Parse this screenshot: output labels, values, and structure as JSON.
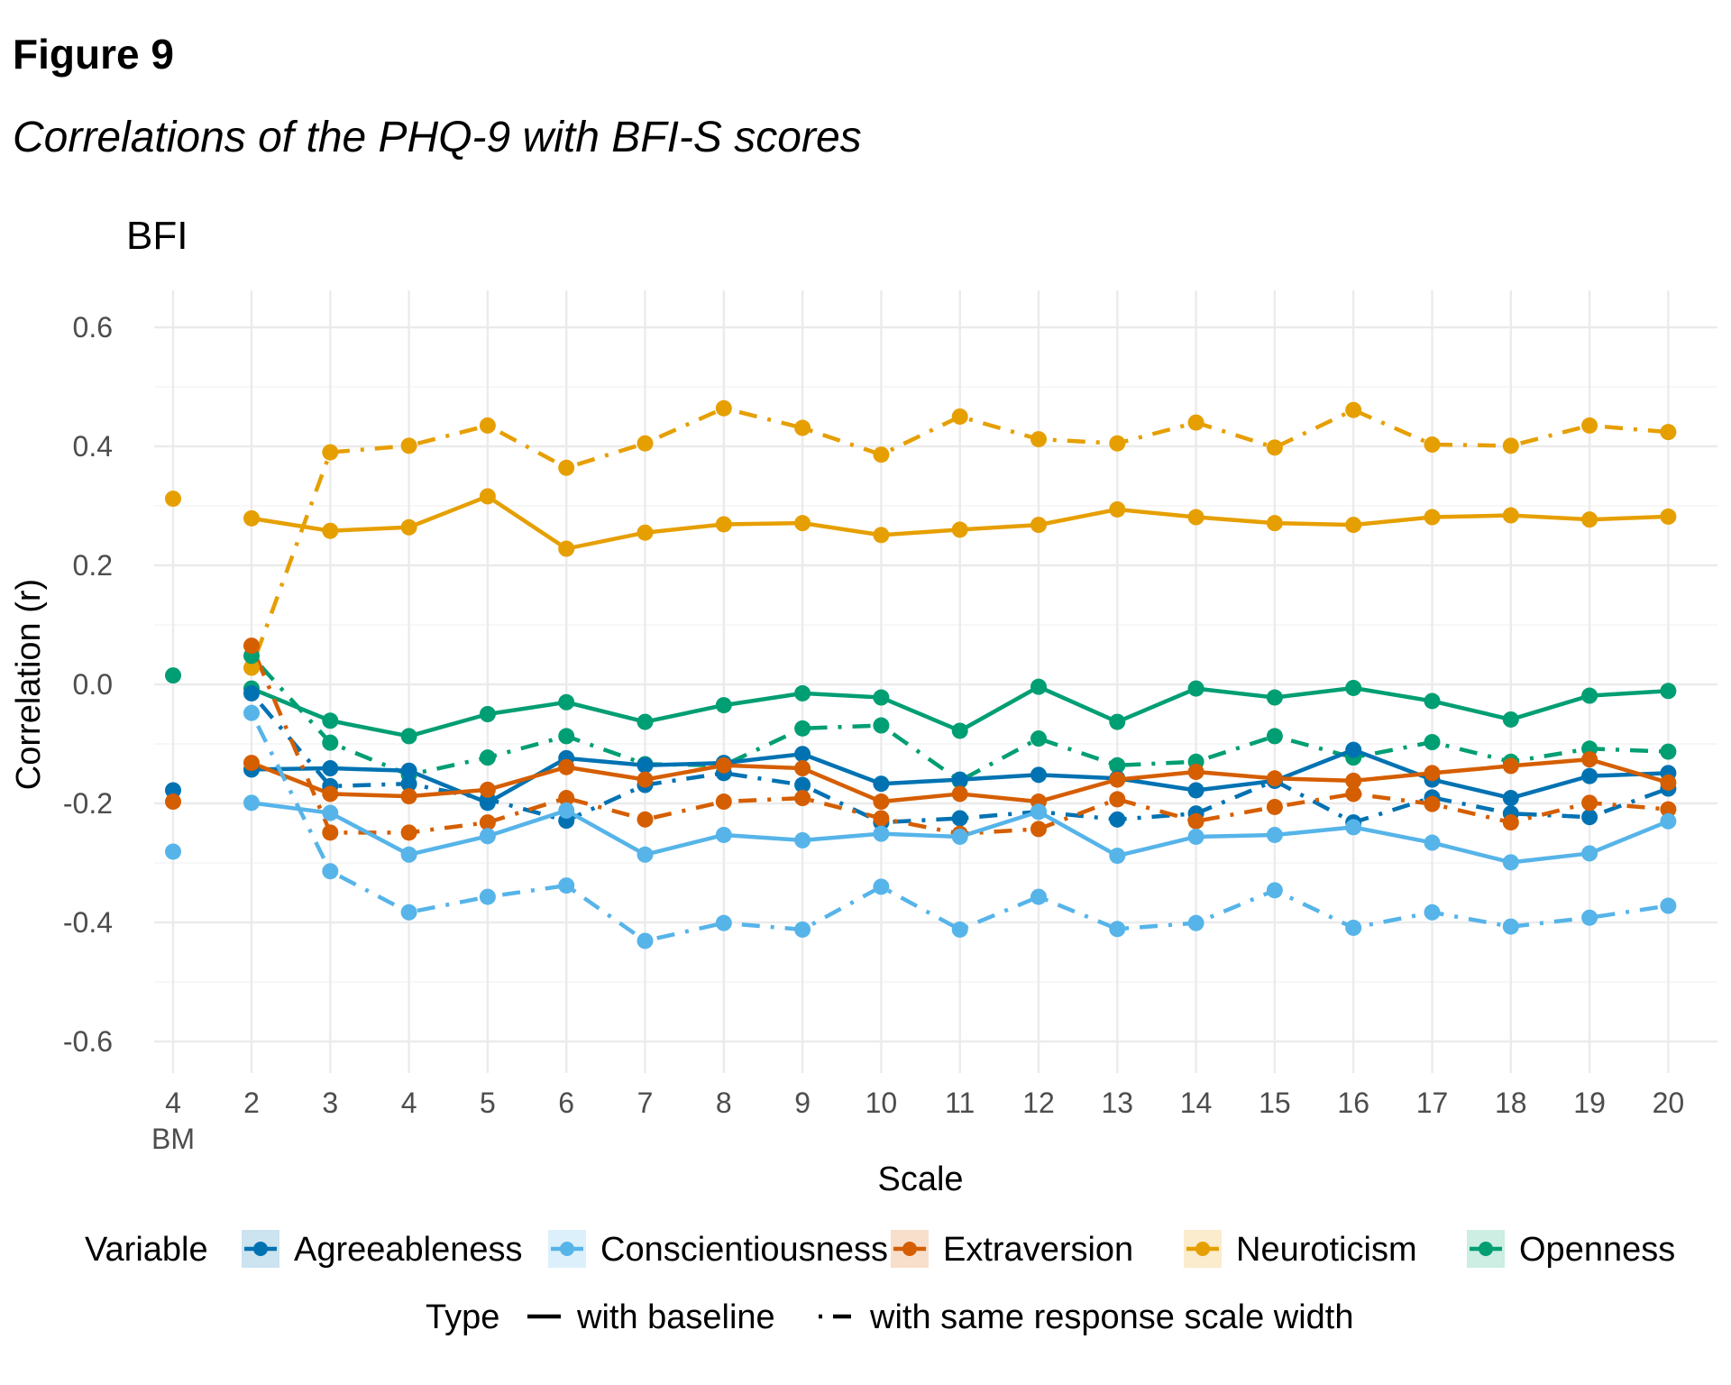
{
  "figure": {
    "label": "Figure 9",
    "subtitle": "Correlations of the PHQ-9 with BFI-S scores"
  },
  "chart_data": {
    "type": "line",
    "title": "BFI",
    "xlabel": "Scale",
    "ylabel": "Correlation (r)",
    "ylim": [
      -0.65,
      0.65
    ],
    "yticks": [
      "-0.6",
      "-0.4",
      "-0.2",
      "0.0",
      "0.2",
      "0.4",
      "0.6"
    ],
    "ytick_values": [
      -0.6,
      -0.4,
      -0.2,
      0.0,
      0.2,
      0.4,
      0.6
    ],
    "grid": true,
    "categories": [
      "4\nBM",
      "2",
      "3",
      "4",
      "5",
      "6",
      "7",
      "8",
      "9",
      "10",
      "11",
      "12",
      "13",
      "14",
      "15",
      "16",
      "17",
      "18",
      "19",
      "20"
    ],
    "xtick_labels": [
      {
        "main": "4",
        "sub": "BM"
      },
      {
        "main": "2"
      },
      {
        "main": "3"
      },
      {
        "main": "4"
      },
      {
        "main": "5"
      },
      {
        "main": "6"
      },
      {
        "main": "7"
      },
      {
        "main": "8"
      },
      {
        "main": "9"
      },
      {
        "main": "10"
      },
      {
        "main": "11"
      },
      {
        "main": "12"
      },
      {
        "main": "13"
      },
      {
        "main": "14"
      },
      {
        "main": "15"
      },
      {
        "main": "16"
      },
      {
        "main": "17"
      },
      {
        "main": "18"
      },
      {
        "main": "19"
      },
      {
        "main": "20"
      }
    ],
    "legend": {
      "placement": "bottom",
      "variable_title": "Variable",
      "variables": [
        {
          "name": "Agreeableness",
          "color": "#0072B2",
          "fill": "#cce3f0"
        },
        {
          "name": "Conscientiousness",
          "color": "#56B4E9",
          "fill": "#dcf0fb"
        },
        {
          "name": "Extraversion",
          "color": "#D55E00",
          "fill": "#f7dfcc"
        },
        {
          "name": "Neuroticism",
          "color": "#E69F00",
          "fill": "#faeccc"
        },
        {
          "name": "Openness",
          "color": "#009E73",
          "fill": "#cceee3"
        }
      ],
      "type_title": "Type",
      "types": [
        {
          "name": "with baseline",
          "linestyle": "solid"
        },
        {
          "name": "with same response scale width",
          "linestyle": "dotdash"
        }
      ]
    },
    "series": [
      {
        "variable": "Neuroticism",
        "type": "with baseline",
        "color": "#E69F00",
        "values": [
          0.312,
          0.279,
          0.258,
          0.264,
          0.316,
          0.228,
          0.255,
          0.269,
          0.271,
          0.251,
          0.26,
          0.268,
          0.294,
          0.281,
          0.271,
          0.268,
          0.281,
          0.284,
          0.277,
          0.282
        ]
      },
      {
        "variable": "Neuroticism",
        "type": "with same response scale width",
        "color": "#E69F00",
        "values": [
          null,
          0.028,
          0.39,
          0.401,
          0.435,
          0.364,
          0.405,
          0.464,
          0.431,
          0.386,
          0.45,
          0.412,
          0.405,
          0.44,
          0.398,
          0.461,
          0.403,
          0.401,
          0.435,
          0.424
        ]
      },
      {
        "variable": "Openness",
        "type": "with baseline",
        "color": "#009E73",
        "values": [
          0.015,
          -0.007,
          -0.061,
          -0.087,
          -0.05,
          -0.03,
          -0.063,
          -0.035,
          -0.015,
          -0.022,
          -0.078,
          -0.004,
          -0.063,
          -0.007,
          -0.022,
          -0.006,
          -0.028,
          -0.059,
          -0.019,
          -0.011
        ]
      },
      {
        "variable": "Openness",
        "type": "with same response scale width",
        "color": "#009E73",
        "values": [
          null,
          0.048,
          -0.098,
          -0.152,
          -0.123,
          -0.087,
          -0.134,
          -0.136,
          -0.074,
          -0.069,
          -0.162,
          -0.091,
          -0.136,
          -0.13,
          -0.087,
          -0.123,
          -0.097,
          -0.13,
          -0.108,
          -0.113
        ]
      },
      {
        "variable": "Agreeableness",
        "type": "with baseline",
        "color": "#0072B2",
        "values": [
          -0.178,
          -0.143,
          -0.141,
          -0.145,
          -0.199,
          -0.124,
          -0.136,
          -0.132,
          -0.117,
          -0.167,
          -0.16,
          -0.152,
          -0.158,
          -0.178,
          -0.162,
          -0.11,
          -0.16,
          -0.191,
          -0.154,
          -0.149
        ]
      },
      {
        "variable": "Agreeableness",
        "type": "with same response scale width",
        "color": "#0072B2",
        "values": [
          null,
          -0.015,
          -0.171,
          -0.167,
          -0.193,
          -0.229,
          -0.169,
          -0.149,
          -0.169,
          -0.232,
          -0.225,
          -0.214,
          -0.227,
          -0.217,
          -0.162,
          -0.232,
          -0.19,
          -0.217,
          -0.223,
          -0.175
        ]
      },
      {
        "variable": "Extraversion",
        "type": "with baseline",
        "color": "#D55E00",
        "values": [
          -0.197,
          -0.132,
          -0.184,
          -0.188,
          -0.177,
          -0.139,
          -0.16,
          -0.136,
          -0.141,
          -0.197,
          -0.184,
          -0.197,
          -0.16,
          -0.147,
          -0.158,
          -0.162,
          -0.149,
          -0.137,
          -0.126,
          -0.165
        ]
      },
      {
        "variable": "Extraversion",
        "type": "with same response scale width",
        "color": "#D55E00",
        "values": [
          null,
          0.065,
          -0.249,
          -0.249,
          -0.232,
          -0.191,
          -0.227,
          -0.197,
          -0.191,
          -0.225,
          -0.251,
          -0.243,
          -0.193,
          -0.23,
          -0.206,
          -0.184,
          -0.201,
          -0.232,
          -0.199,
          -0.21
        ]
      },
      {
        "variable": "Conscientiousness",
        "type": "with baseline",
        "color": "#56B4E9",
        "values": [
          -0.281,
          -0.199,
          -0.216,
          -0.286,
          -0.255,
          -0.212,
          -0.286,
          -0.253,
          -0.262,
          -0.251,
          -0.256,
          -0.214,
          -0.288,
          -0.256,
          -0.253,
          -0.24,
          -0.266,
          -0.299,
          -0.284,
          -0.23
        ]
      },
      {
        "variable": "Conscientiousness",
        "type": "with same response scale width",
        "color": "#56B4E9",
        "values": [
          null,
          -0.048,
          -0.314,
          -0.383,
          -0.357,
          -0.338,
          -0.431,
          -0.401,
          -0.412,
          -0.34,
          -0.412,
          -0.357,
          -0.411,
          -0.401,
          -0.346,
          -0.409,
          -0.383,
          -0.407,
          -0.392,
          -0.372
        ]
      }
    ]
  }
}
